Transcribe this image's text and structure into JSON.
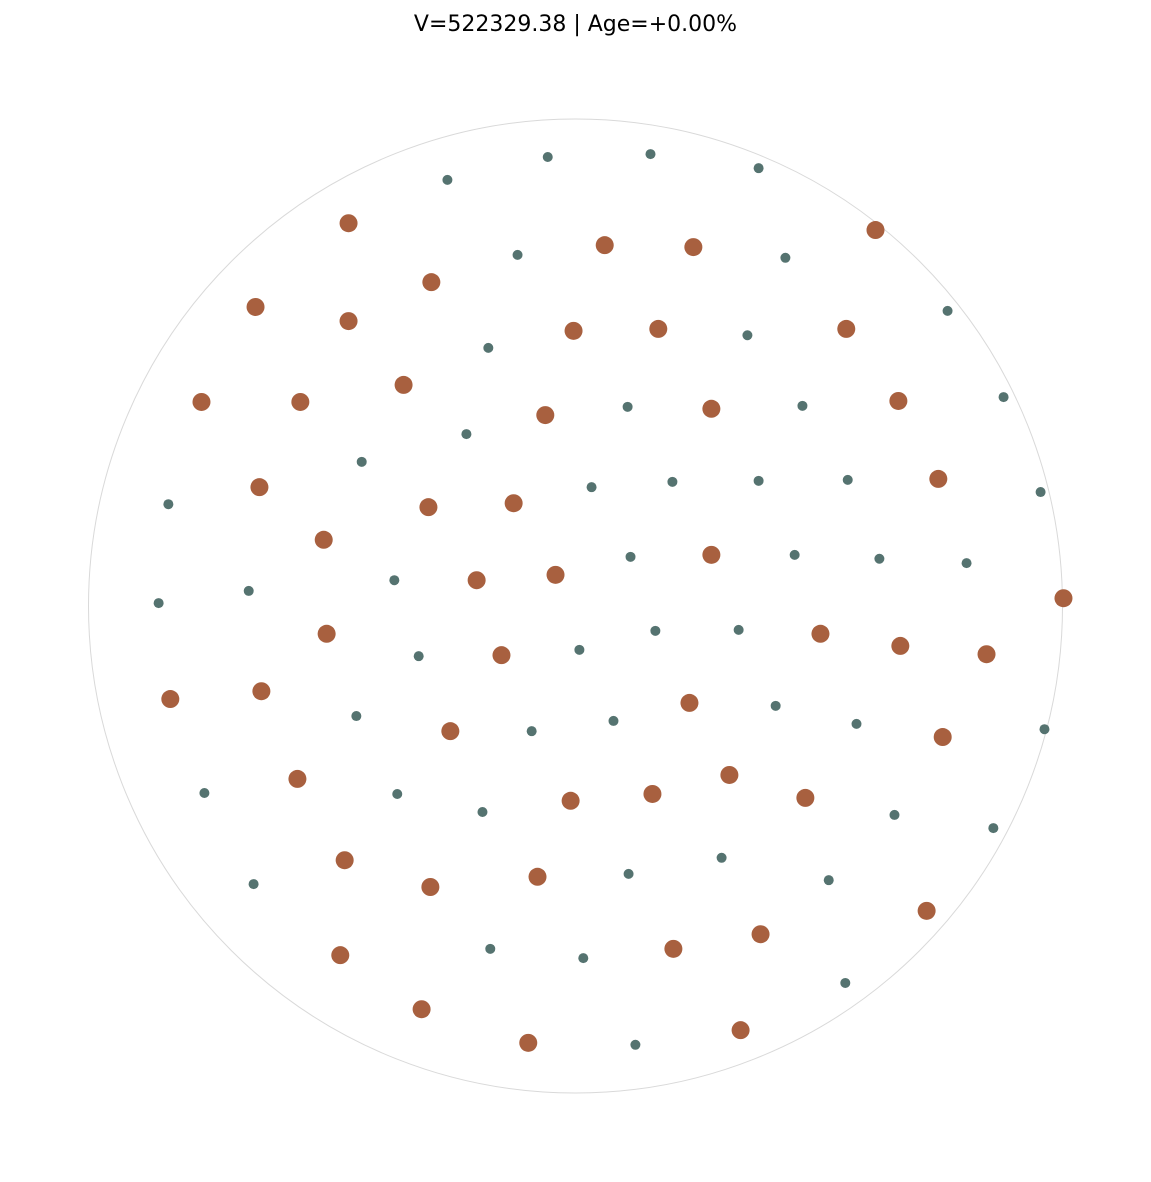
{
  "chart_data": {
    "type": "scatter",
    "title": "V=522329.38 | Age=+0.00%",
    "xlim": [
      -1,
      1
    ],
    "ylim": [
      -1,
      1
    ],
    "grid": false,
    "axes_visible": false,
    "boundary": "circle",
    "colors": {
      "large": "#A8603F",
      "small": "#557370",
      "boundary": "#d9d9d9"
    },
    "series": [
      {
        "marker": "small",
        "points": [
          [
            -0.263,
            0.875
          ],
          [
            -0.057,
            0.922
          ],
          [
            0.154,
            0.928
          ],
          [
            0.376,
            0.899
          ],
          [
            -0.119,
            0.721
          ],
          [
            0.431,
            0.715
          ],
          [
            0.764,
            0.606
          ],
          [
            -0.179,
            0.53
          ],
          [
            0.353,
            0.556
          ],
          [
            0.107,
            0.409
          ],
          [
            0.466,
            0.411
          ],
          [
            0.879,
            0.429
          ],
          [
            -0.224,
            0.353
          ],
          [
            -0.439,
            0.296
          ],
          [
            0.033,
            0.244
          ],
          [
            0.199,
            0.255
          ],
          [
            0.376,
            0.257
          ],
          [
            0.559,
            0.259
          ],
          [
            0.955,
            0.234
          ],
          [
            -0.836,
            0.209
          ],
          [
            0.113,
            0.101
          ],
          [
            0.45,
            0.105
          ],
          [
            0.624,
            0.097
          ],
          [
            0.803,
            0.088
          ],
          [
            -0.372,
            0.053
          ],
          [
            -0.671,
            0.031
          ],
          [
            -0.856,
            0.006
          ],
          [
            0.164,
            -0.051
          ],
          [
            0.335,
            -0.049
          ],
          [
            -0.322,
            -0.103
          ],
          [
            0.008,
            -0.09
          ],
          [
            -0.45,
            -0.226
          ],
          [
            -0.09,
            -0.257
          ],
          [
            0.078,
            -0.236
          ],
          [
            0.411,
            -0.205
          ],
          [
            0.577,
            -0.242
          ],
          [
            0.963,
            -0.253
          ],
          [
            -0.762,
            -0.384
          ],
          [
            -0.366,
            -0.386
          ],
          [
            -0.191,
            -0.423
          ],
          [
            0.655,
            -0.429
          ],
          [
            0.858,
            -0.456
          ],
          [
            -0.661,
            -0.571
          ],
          [
            0.109,
            -0.55
          ],
          [
            0.3,
            -0.517
          ],
          [
            0.52,
            -0.563
          ],
          [
            -0.175,
            -0.704
          ],
          [
            0.016,
            -0.723
          ],
          [
            0.554,
            -0.774
          ],
          [
            0.123,
            -0.901
          ]
        ]
      },
      {
        "marker": "large",
        "points": [
          [
            -0.466,
            0.786
          ],
          [
            -0.296,
            0.665
          ],
          [
            0.06,
            0.741
          ],
          [
            0.242,
            0.737
          ],
          [
            0.616,
            0.772
          ],
          [
            -0.657,
            0.614
          ],
          [
            -0.466,
            0.585
          ],
          [
            -0.004,
            0.565
          ],
          [
            0.17,
            0.569
          ],
          [
            0.556,
            0.569
          ],
          [
            -0.768,
            0.419
          ],
          [
            -0.565,
            0.419
          ],
          [
            -0.353,
            0.454
          ],
          [
            -0.062,
            0.392
          ],
          [
            0.279,
            0.405
          ],
          [
            0.663,
            0.421
          ],
          [
            -0.649,
            0.244
          ],
          [
            -0.302,
            0.203
          ],
          [
            -0.127,
            0.211
          ],
          [
            0.745,
            0.261
          ],
          [
            -0.517,
            0.136
          ],
          [
            -0.203,
            0.053
          ],
          [
            -0.041,
            0.064
          ],
          [
            0.279,
            0.105
          ],
          [
            1.002,
            0.016
          ],
          [
            -0.511,
            -0.057
          ],
          [
            -0.152,
            -0.101
          ],
          [
            0.503,
            -0.057
          ],
          [
            0.667,
            -0.082
          ],
          [
            0.844,
            -0.099
          ],
          [
            -0.832,
            -0.191
          ],
          [
            -0.645,
            -0.175
          ],
          [
            -0.257,
            -0.257
          ],
          [
            0.234,
            -0.199
          ],
          [
            0.754,
            -0.269
          ],
          [
            -0.571,
            -0.355
          ],
          [
            -0.01,
            -0.4
          ],
          [
            0.158,
            -0.386
          ],
          [
            0.316,
            -0.347
          ],
          [
            0.472,
            -0.394
          ],
          [
            -0.474,
            -0.522
          ],
          [
            -0.298,
            -0.577
          ],
          [
            -0.078,
            -0.556
          ],
          [
            0.721,
            -0.626
          ],
          [
            -0.483,
            -0.717
          ],
          [
            0.201,
            -0.704
          ],
          [
            0.38,
            -0.674
          ],
          [
            -0.316,
            -0.828
          ],
          [
            -0.097,
            -0.897
          ],
          [
            0.339,
            -0.871
          ]
        ]
      }
    ]
  }
}
